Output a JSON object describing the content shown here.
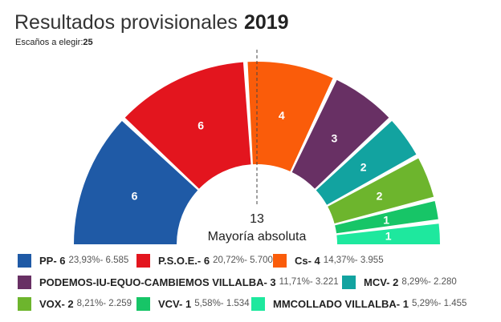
{
  "header": {
    "title": "Resultados provisionales",
    "year": "2019",
    "subtitle_label": "Escaños a elegir:",
    "subtitle_value": "25"
  },
  "majority": {
    "seats": "13",
    "label": "Mayoría absoluta"
  },
  "chart_data": {
    "type": "parliament-semicircle",
    "total_seats": 25,
    "majority": 13,
    "parties": [
      {
        "name": "PP",
        "seats": 6,
        "pct": "23,93%",
        "votes": "6.585",
        "color": "#1f5aa6",
        "seat_label": "6"
      },
      {
        "name": "P.S.O.E.",
        "seats": 6,
        "pct": "20,72%",
        "votes": "5.700",
        "color": "#e3151e",
        "seat_label": "6"
      },
      {
        "name": "Cs",
        "seats": 4,
        "pct": "14,37%",
        "votes": "3.955",
        "color": "#fa5c0a",
        "seat_label": "4"
      },
      {
        "name": "PODEMOS-IU-EQUO-CAMBIEMOS VILLALBA",
        "seats": 3,
        "pct": "11,71%",
        "votes": "3.221",
        "color": "#683064",
        "seat_label": "3"
      },
      {
        "name": "MCV",
        "seats": 2,
        "pct": "8,29%",
        "votes": "2.280",
        "color": "#12a3a0",
        "seat_label": "2"
      },
      {
        "name": "VOX",
        "seats": 2,
        "pct": "8,21%",
        "votes": "2.259",
        "color": "#6db52d",
        "seat_label": "2"
      },
      {
        "name": "VCV",
        "seats": 1,
        "pct": "5,58%",
        "votes": "1.534",
        "color": "#17c567",
        "seat_label": "1"
      },
      {
        "name": "MMCOLLADO VILLALBA",
        "seats": 1,
        "pct": "5,29%",
        "votes": "1.455",
        "color": "#1ee89e",
        "seat_label": "1"
      }
    ]
  },
  "legend": [
    {
      "name": "PP- 6",
      "vals": "23,93%- 6.585"
    },
    {
      "name": "P.S.O.E.- 6",
      "vals": "20,72%- 5.700"
    },
    {
      "name": "Cs- 4",
      "vals": "14,37%- 3.955"
    },
    {
      "name": "PODEMOS-IU-EQUO-CAMBIEMOS VILLALBA- 3",
      "vals": "11,71%- 3.221"
    },
    {
      "name": "MCV- 2",
      "vals": "8,29%- 2.280"
    },
    {
      "name": "VOX- 2",
      "vals": "8,21%- 2.259"
    },
    {
      "name": "VCV- 1",
      "vals": "5,58%- 1.534"
    },
    {
      "name": "MMCOLLADO VILLALBA- 1",
      "vals": "5,29%- 1.455"
    }
  ]
}
